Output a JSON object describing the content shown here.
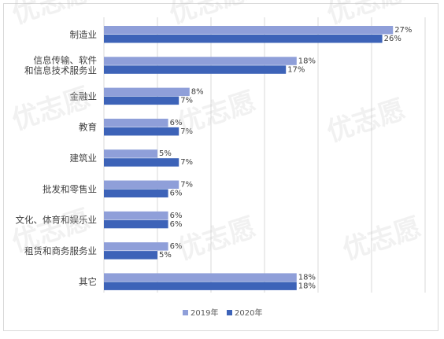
{
  "chart_data": {
    "type": "bar",
    "orientation": "horizontal",
    "categories": [
      [
        "制造业"
      ],
      [
        "信息传输、软件",
        "和信息技术服务业"
      ],
      [
        "金融业"
      ],
      [
        "教育"
      ],
      [
        "建筑业"
      ],
      [
        "批发和零售业"
      ],
      [
        "文化、体育和娱乐业"
      ],
      [
        "租赁和商务服务业"
      ],
      [
        "其它"
      ]
    ],
    "series": [
      {
        "name": "2019年",
        "color": "#8f9fd9",
        "values": [
          27,
          18,
          8,
          6,
          5,
          7,
          6,
          6,
          18
        ],
        "labels": [
          "27%",
          "18%",
          "8%",
          "6%",
          "5%",
          "7%",
          "6%",
          "6%",
          "18%"
        ]
      },
      {
        "name": "2020年",
        "color": "#3d63b8",
        "values": [
          26,
          17,
          7,
          7,
          7,
          6,
          6,
          5,
          18
        ],
        "labels": [
          "26%",
          "17%",
          "7%",
          "7%",
          "7%",
          "6%",
          "6%",
          "5%",
          "18%"
        ]
      }
    ],
    "xlim": [
      0,
      30
    ],
    "grid": true,
    "legend": "bottom",
    "title": "",
    "xlabel": "",
    "ylabel": ""
  },
  "watermark": "优志愿"
}
